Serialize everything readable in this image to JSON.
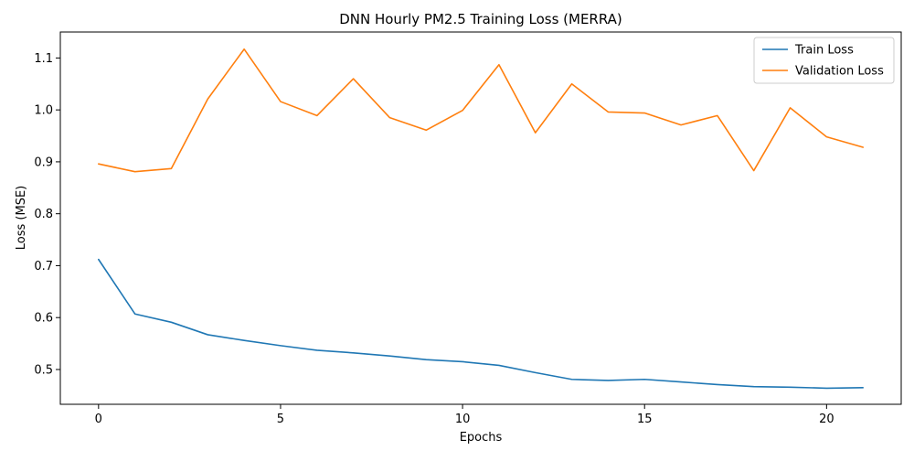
{
  "chart_data": {
    "type": "line",
    "title": "DNN Hourly PM2.5 Training Loss (MERRA)",
    "xlabel": "Epochs",
    "ylabel": "Loss (MSE)",
    "x": [
      0,
      1,
      2,
      3,
      4,
      5,
      6,
      7,
      8,
      9,
      10,
      11,
      12,
      13,
      14,
      15,
      16,
      17,
      18,
      19,
      20,
      21
    ],
    "xlim": [
      -1.05,
      22.05
    ],
    "ylim": [
      0.433,
      1.15
    ],
    "xticks": [
      0,
      5,
      10,
      15,
      20
    ],
    "xtick_labels": [
      "0",
      "5",
      "10",
      "15",
      "20"
    ],
    "yticks": [
      0.5,
      0.6,
      0.7,
      0.8,
      0.9,
      1.0,
      1.1
    ],
    "ytick_labels": [
      "0.5",
      "0.6",
      "0.7",
      "0.8",
      "0.9",
      "1.0",
      "1.1"
    ],
    "grid": false,
    "legend_position": "top-right",
    "series": [
      {
        "name": "Train Loss",
        "color": "#1f77b4",
        "values": [
          0.712,
          0.607,
          0.591,
          0.567,
          0.556,
          0.546,
          0.537,
          0.532,
          0.526,
          0.519,
          0.515,
          0.508,
          0.494,
          0.481,
          0.479,
          0.481,
          0.476,
          0.471,
          0.467,
          0.466,
          0.464,
          0.465
        ]
      },
      {
        "name": "Validation Loss",
        "color": "#ff7f0e",
        "values": [
          0.896,
          0.881,
          0.887,
          1.021,
          1.117,
          1.016,
          0.989,
          1.06,
          0.985,
          0.961,
          0.999,
          1.087,
          0.956,
          1.05,
          0.996,
          0.994,
          0.971,
          0.989,
          0.883,
          1.004,
          0.948,
          0.928
        ]
      }
    ]
  }
}
